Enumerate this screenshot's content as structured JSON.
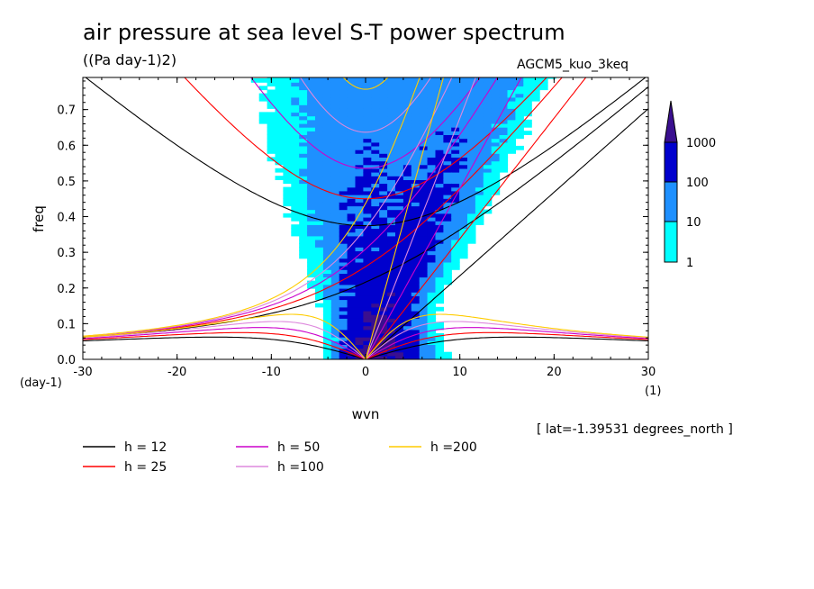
{
  "title": "air pressure at sea level S-T power spectrum",
  "units": "((Pa day-1)2)",
  "model": "AGCM5_kuo_3keq",
  "lat_label": "[ lat=-1.39531 degrees_north ]",
  "chart_data": {
    "type": "heatmap",
    "xlabel": "wvn",
    "ylabel": "freq",
    "x_unit_label": "(1)",
    "y_unit_label": "(day-1)",
    "xlim": [
      -30,
      30
    ],
    "ylim": [
      0,
      0.79
    ],
    "x_ticks": [
      -30,
      -20,
      -10,
      0,
      10,
      20,
      30
    ],
    "x_tick_labels": [
      "-30",
      "-20",
      "-10",
      "0",
      "10",
      "20",
      "30"
    ],
    "y_ticks": [
      0.0,
      0.1,
      0.2,
      0.3,
      0.4,
      0.5,
      0.6,
      0.7
    ],
    "y_tick_labels": [
      "0.0",
      "0.1",
      "0.2",
      "0.3",
      "0.4",
      "0.5",
      "0.6",
      "0.7"
    ],
    "colorbar": {
      "levels": [
        1,
        10,
        100,
        1000
      ],
      "level_labels": [
        "1",
        "10",
        "100",
        "1000"
      ],
      "colors": [
        "#00ffff",
        "#1e90ff",
        "#0000cd",
        "#3a0f8f"
      ]
    },
    "dispersion_curves": [
      {
        "label": "h = 12",
        "color": "#000000"
      },
      {
        "label": "h = 25",
        "color": "#ff0000"
      },
      {
        "label": "h = 50",
        "color": "#cc00cc"
      },
      {
        "label": "h =100",
        "color": "#dd88dd"
      },
      {
        "label": "h =200",
        "color": "#ffcc00"
      }
    ]
  }
}
